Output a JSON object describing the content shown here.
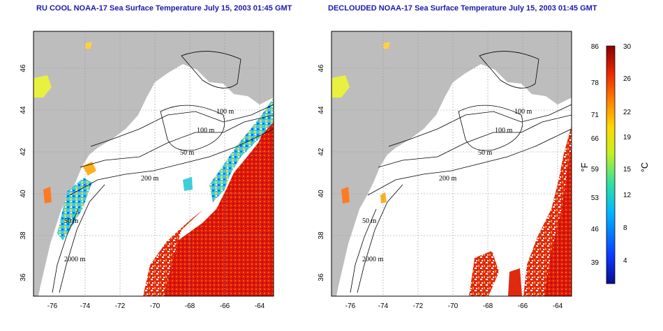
{
  "panels": [
    {
      "title": "RU COOL NOAA-17 Sea Surface Temperature July 15, 2003 01:45 GMT",
      "contour_labels": [
        "100 m",
        "100 m",
        "50 m",
        "200 m",
        "50 m",
        "2000 m"
      ]
    },
    {
      "title": "DECLOUDED NOAA-17 Sea Surface Temperature July 15, 2003 01:45 GMT",
      "contour_labels": [
        "100 m",
        "100 m",
        "50 m",
        "200 m",
        "50 m",
        "2000 m"
      ]
    }
  ],
  "axes": {
    "x_ticks": [
      "-76",
      "-74",
      "-72",
      "-70",
      "-68",
      "-66",
      "-64"
    ],
    "y_ticks": [
      "36",
      "38",
      "40",
      "42",
      "44",
      "46"
    ]
  },
  "colorbar": {
    "fahrenheit_ticks": [
      "86",
      "78",
      "71",
      "66",
      "59",
      "53",
      "46",
      "39"
    ],
    "celsius_ticks": [
      "30",
      "26",
      "22",
      "19",
      "15",
      "12",
      "8",
      "4"
    ],
    "fahrenheit_unit": "°F",
    "celsius_unit": "°C",
    "range_c": [
      0,
      30
    ]
  },
  "colors": {
    "land": "#bdbdbd",
    "water": "#ffffff",
    "title": "#1a1ab0",
    "warm": "#dd1a0c",
    "cool": "#1aa0ff"
  }
}
